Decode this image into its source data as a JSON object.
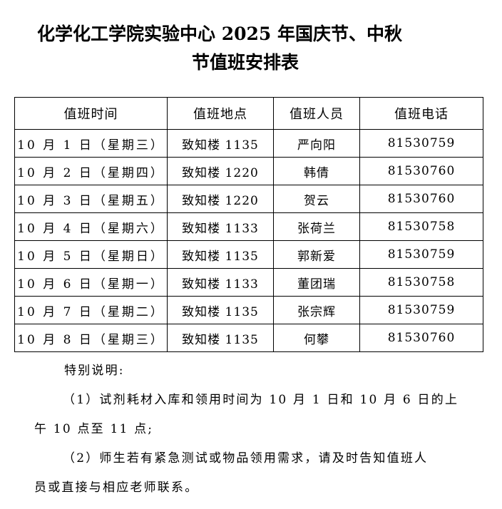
{
  "title": {
    "line1": "化学化工学院实验中心 2025 年国庆节、中秋",
    "line2": "节值班安排表"
  },
  "table": {
    "headers": [
      "值班时间",
      "值班地点",
      "值班人员",
      "值班电话"
    ],
    "rows": [
      [
        "10 月 1 日（星期三）",
        "致知楼 1135",
        "严向阳",
        "81530759"
      ],
      [
        "10 月 2 日（星期四）",
        "致知楼 1220",
        "韩倩",
        "81530760"
      ],
      [
        "10 月 3 日（星期五）",
        "致知楼 1220",
        "贺云",
        "81530760"
      ],
      [
        "10 月 4 日（星期六）",
        "致知楼 1133",
        "张荷兰",
        "81530758"
      ],
      [
        "10 月 5 日（星期日）",
        "致知楼 1135",
        "郭新爱",
        "81530759"
      ],
      [
        "10 月 6 日（星期一）",
        "致知楼 1133",
        "董团瑞",
        "81530758"
      ],
      [
        "10 月 7 日（星期二）",
        "致知楼 1135",
        "张宗辉",
        "81530759"
      ],
      [
        "10 月 8 日（星期三）",
        "致知楼 1135",
        "何攀",
        "81530760"
      ]
    ]
  },
  "notes": {
    "heading": "特别说明:",
    "item1": [
      "（1）试剂耗材入库和领用时间为 10 月 1 日和 10 月 6 日的上",
      "午 10 点至 11 点;"
    ],
    "item2": [
      "（2）师生若有紧急测试或物品领用需求，请及时告知值班人",
      "员或直接与相应老师联系。"
    ]
  }
}
